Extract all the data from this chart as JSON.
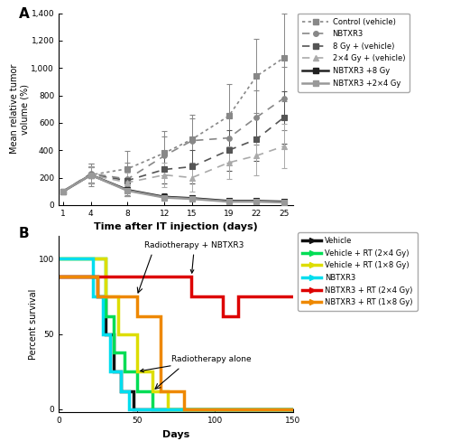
{
  "panel_A": {
    "xlabel": "Time after IT injection (days)",
    "ylabel": "Mean relative tumor\nvolume (%)",
    "xticks": [
      1,
      4,
      8,
      12,
      15,
      19,
      22,
      25
    ],
    "ylim": [
      0,
      1400
    ],
    "ytick_vals": [
      0,
      200,
      400,
      600,
      800,
      1000,
      1200,
      1400
    ],
    "ytick_labels": [
      "0",
      "200",
      "400",
      "600",
      "800",
      "1,000",
      "1,200",
      "1,400"
    ],
    "series": [
      {
        "label": "Control (vehicle)",
        "x": [
          1,
          4,
          8,
          12,
          15,
          19,
          22,
          25
        ],
        "y": [
          100,
          220,
          265,
          380,
          480,
          650,
          940,
          1075
        ],
        "yerr": [
          0,
          80,
          130,
          160,
          180,
          230,
          270,
          320
        ],
        "color": "#888888",
        "linestyle": "dotted",
        "marker": "s",
        "linewidth": 1.2,
        "markersize": 4
      },
      {
        "label": "NBTXR3",
        "x": [
          1,
          4,
          8,
          12,
          15,
          19,
          22,
          25
        ],
        "y": [
          100,
          230,
          190,
          360,
          470,
          490,
          640,
          780
        ],
        "yerr": [
          0,
          70,
          120,
          140,
          160,
          180,
          200,
          230
        ],
        "color": "#888888",
        "linestyle": "dashed",
        "marker": "o",
        "linewidth": 1.2,
        "markersize": 4
      },
      {
        "label": "8 Gy + (vehicle)",
        "x": [
          1,
          4,
          8,
          12,
          15,
          19,
          22,
          25
        ],
        "y": [
          100,
          220,
          180,
          260,
          280,
          400,
          480,
          640
        ],
        "yerr": [
          0,
          65,
          85,
          100,
          120,
          150,
          160,
          190
        ],
        "color": "#555555",
        "linestyle": "dashed",
        "marker": "s",
        "linewidth": 1.2,
        "markersize": 4
      },
      {
        "label": "2×4 Gy + (vehicle)",
        "x": [
          1,
          4,
          8,
          12,
          15,
          19,
          22,
          25
        ],
        "y": [
          100,
          220,
          165,
          220,
          200,
          310,
          360,
          430
        ],
        "yerr": [
          0,
          60,
          75,
          90,
          100,
          120,
          140,
          160
        ],
        "color": "#aaaaaa",
        "linestyle": "dashed",
        "marker": "^",
        "linewidth": 1.2,
        "markersize": 4
      },
      {
        "label": "NBTXR3 +8 Gy",
        "x": [
          1,
          4,
          8,
          12,
          15,
          19,
          22,
          25
        ],
        "y": [
          100,
          220,
          110,
          60,
          50,
          30,
          30,
          25
        ],
        "yerr": [
          0,
          55,
          45,
          25,
          20,
          12,
          12,
          12
        ],
        "color": "#222222",
        "linestyle": "solid",
        "marker": "s",
        "linewidth": 1.8,
        "markersize": 4
      },
      {
        "label": "NBTXR3 +2×4 Gy",
        "x": [
          1,
          4,
          8,
          12,
          15,
          19,
          22,
          25
        ],
        "y": [
          100,
          220,
          105,
          55,
          45,
          25,
          25,
          20
        ],
        "yerr": [
          0,
          55,
          40,
          22,
          18,
          10,
          10,
          10
        ],
        "color": "#999999",
        "linestyle": "solid",
        "marker": "s",
        "linewidth": 1.8,
        "markersize": 4
      }
    ],
    "legend": [
      {
        "label": "Control (vehicle)",
        "color": "#888888",
        "ls": "dotted",
        "marker": "s",
        "lw": 1.2,
        "ms": 4
      },
      {
        "label": "NBTXR3",
        "color": "#888888",
        "ls": "dashed",
        "marker": "o",
        "lw": 1.2,
        "ms": 4
      },
      {
        "label": "8 Gy + (vehicle)",
        "color": "#555555",
        "ls": "dashed",
        "marker": "s",
        "lw": 1.2,
        "ms": 4
      },
      {
        "label": "2×4 Gy + (vehicle)",
        "color": "#aaaaaa",
        "ls": "dashed",
        "marker": "^",
        "lw": 1.2,
        "ms": 4
      },
      {
        "label": "NBTXR3 +8 Gy",
        "color": "#222222",
        "ls": "solid",
        "marker": "s",
        "lw": 1.8,
        "ms": 4
      },
      {
        "label": "NBTXR3 +2×4 Gy",
        "color": "#999999",
        "ls": "solid",
        "marker": "s",
        "lw": 1.8,
        "ms": 4
      }
    ]
  },
  "panel_B": {
    "xlabel": "Days",
    "ylabel": "Percent survival",
    "xlim": [
      0,
      150
    ],
    "ylim": [
      -2,
      115
    ],
    "xticks": [
      0,
      50,
      100,
      150
    ],
    "yticks": [
      0,
      50,
      100
    ],
    "series": [
      {
        "label": "Vehicle",
        "color": "#111111",
        "lw": 2.5,
        "xs": [
          0,
          25,
          25,
          30,
          30,
          35,
          35,
          40,
          40,
          48,
          48,
          150
        ],
        "ys": [
          88,
          88,
          75,
          75,
          50,
          50,
          25,
          25,
          12,
          12,
          0,
          0
        ]
      },
      {
        "label": "Vehicle + RT (2×4 Gy)",
        "color": "#00dd55",
        "lw": 2.5,
        "xs": [
          0,
          30,
          30,
          35,
          35,
          42,
          42,
          50,
          50,
          60,
          60,
          150
        ],
        "ys": [
          100,
          100,
          62,
          62,
          38,
          38,
          25,
          25,
          12,
          12,
          0,
          0
        ]
      },
      {
        "label": "Vehicle + RT (1×8 Gy)",
        "color": "#dddd00",
        "lw": 2.5,
        "xs": [
          0,
          30,
          30,
          38,
          38,
          50,
          50,
          60,
          60,
          70,
          70,
          150
        ],
        "ys": [
          100,
          100,
          75,
          75,
          50,
          50,
          25,
          25,
          12,
          12,
          0,
          0
        ]
      },
      {
        "label": "NBTXR3",
        "color": "#00ddee",
        "lw": 2.5,
        "xs": [
          0,
          22,
          22,
          28,
          28,
          33,
          33,
          40,
          40,
          45,
          45,
          150
        ],
        "ys": [
          100,
          100,
          75,
          75,
          50,
          50,
          25,
          25,
          12,
          12,
          0,
          0
        ]
      },
      {
        "label": "NBTXR3 + RT (2×4 Gy)",
        "color": "#dd0000",
        "lw": 2.5,
        "xs": [
          0,
          85,
          85,
          105,
          105,
          115,
          115,
          150
        ],
        "ys": [
          88,
          88,
          75,
          75,
          62,
          62,
          75,
          75
        ]
      },
      {
        "label": "NBTXR3 + RT (1×8 Gy)",
        "color": "#ee8800",
        "lw": 2.5,
        "xs": [
          0,
          25,
          25,
          50,
          50,
          65,
          65,
          80,
          80,
          90,
          90,
          150
        ],
        "ys": [
          88,
          88,
          75,
          75,
          62,
          62,
          12,
          12,
          0,
          0,
          0,
          0
        ]
      }
    ],
    "legend": [
      {
        "label": "Vehicle",
        "color": "#111111",
        "lw": 2.5
      },
      {
        "label": "Vehicle + RT (2×4 Gy)",
        "color": "#00dd55",
        "lw": 2.5
      },
      {
        "label": "Vehicle + RT (1×8 Gy)",
        "color": "#dddd00",
        "lw": 2.5
      },
      {
        "label": "NBTXR3",
        "color": "#00ddee",
        "lw": 2.5
      },
      {
        "label": "NBTXR3 + RT (2×4 Gy)",
        "color": "#dd0000",
        "lw": 2.5
      },
      {
        "label": "NBTXR3 + RT (1×8 Gy)",
        "color": "#ee8800",
        "lw": 2.5
      }
    ]
  }
}
